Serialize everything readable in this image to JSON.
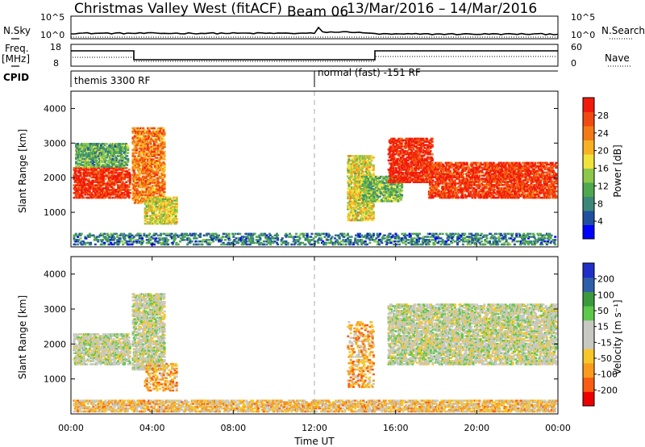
{
  "header": {
    "title": "Christmas Valley West (fitACF)",
    "beam": "Beam 06",
    "date_range": "13/Mar/2016 – 14/Mar/2016"
  },
  "panels": {
    "nsky": {
      "label": "N.Sky",
      "ticks": [
        "10^5",
        "10^0"
      ],
      "right_label": "N.Search",
      "right_ticks": [
        "10^5",
        "10^0"
      ]
    },
    "freq": {
      "label_line1": "Freq.",
      "label_line2": "[MHz]",
      "ticks": [
        "18",
        "8"
      ],
      "right_label": "Nave",
      "right_ticks": [
        "60",
        "0"
      ]
    },
    "cpid": {
      "label": "CPID",
      "segments": [
        "themis 3300 RF",
        "normal (fast) -151 RF"
      ]
    }
  },
  "colors": {
    "divider": "#aaaaaa"
  },
  "chart_data": [
    {
      "type": "heatmap",
      "name": "power",
      "ylabel": "Slant Range [km]",
      "yticks": [
        1000,
        2000,
        3000,
        4000
      ],
      "ylim": [
        0,
        4500
      ],
      "colorbar": {
        "label": "Power [dB]",
        "ticks": [
          "4",
          "8",
          "12",
          "16",
          "20",
          "24",
          "28"
        ],
        "colors": [
          "#0000ff",
          "#204fa0",
          "#3c8878",
          "#4ea84e",
          "#8cc84a",
          "#f2e23c",
          "#f9b124",
          "#f47a16",
          "#f14a10",
          "#f21a0a"
        ]
      },
      "regions": [
        {
          "t0": 0.1,
          "t1": 2.9,
          "r0": 1450,
          "r1": 2350,
          "level": 0.92
        },
        {
          "t0": 0.2,
          "t1": 2.8,
          "r0": 2350,
          "r1": 3050,
          "level": 0.35
        },
        {
          "t0": 3.0,
          "t1": 4.6,
          "r0": 1300,
          "r1": 3500,
          "level": 0.75
        },
        {
          "t0": 3.6,
          "t1": 5.2,
          "r0": 700,
          "r1": 1500,
          "level": 0.55
        },
        {
          "t0": 13.6,
          "t1": 14.9,
          "r0": 800,
          "r1": 2700,
          "level": 0.55
        },
        {
          "t0": 14.3,
          "t1": 16.3,
          "r0": 1350,
          "r1": 2100,
          "level": 0.4
        },
        {
          "t0": 15.6,
          "t1": 17.8,
          "r0": 1900,
          "r1": 3200,
          "level": 0.95
        },
        {
          "t0": 17.6,
          "t1": 23.9,
          "r0": 1450,
          "r1": 2500,
          "level": 0.9
        },
        {
          "t0": 0.1,
          "t1": 23.9,
          "r0": 100,
          "r1": 450,
          "level": 0.25
        }
      ]
    },
    {
      "type": "heatmap",
      "name": "velocity",
      "ylabel": "Slant Range [km]",
      "xlabel": "Time UT",
      "xticks": [
        "00:00",
        "04:00",
        "08:00",
        "12:00",
        "16:00",
        "20:00",
        "00:00"
      ],
      "yticks": [
        1000,
        2000,
        3000,
        4000
      ],
      "ylim": [
        0,
        4500
      ],
      "colorbar": {
        "label": "Velocity [m s⁻¹]",
        "ticks": [
          "-200",
          "-100",
          "-50",
          "-15",
          "15",
          "50",
          "100",
          "200"
        ],
        "colors": [
          "#ee0000",
          "#f95c12",
          "#fa9b1c",
          "#f6c62a",
          "#c8c8c2",
          "#c8c8c2",
          "#5ec84a",
          "#3b9a3c",
          "#2f5fa8",
          "#1f2fc8"
        ]
      },
      "regions": [
        {
          "t0": 0.1,
          "t1": 2.9,
          "r0": 1450,
          "r1": 2350,
          "level": 0.5
        },
        {
          "t0": 3.0,
          "t1": 4.6,
          "r0": 1300,
          "r1": 3500,
          "level": 0.5
        },
        {
          "t0": 3.6,
          "t1": 5.2,
          "r0": 700,
          "r1": 1500,
          "level": 0.3
        },
        {
          "t0": 13.6,
          "t1": 14.9,
          "r0": 800,
          "r1": 2700,
          "level": 0.3
        },
        {
          "t0": 15.6,
          "t1": 23.9,
          "r0": 1450,
          "r1": 3200,
          "level": 0.5
        },
        {
          "t0": 0.1,
          "t1": 23.9,
          "r0": 100,
          "r1": 450,
          "level": 0.35
        }
      ]
    }
  ]
}
